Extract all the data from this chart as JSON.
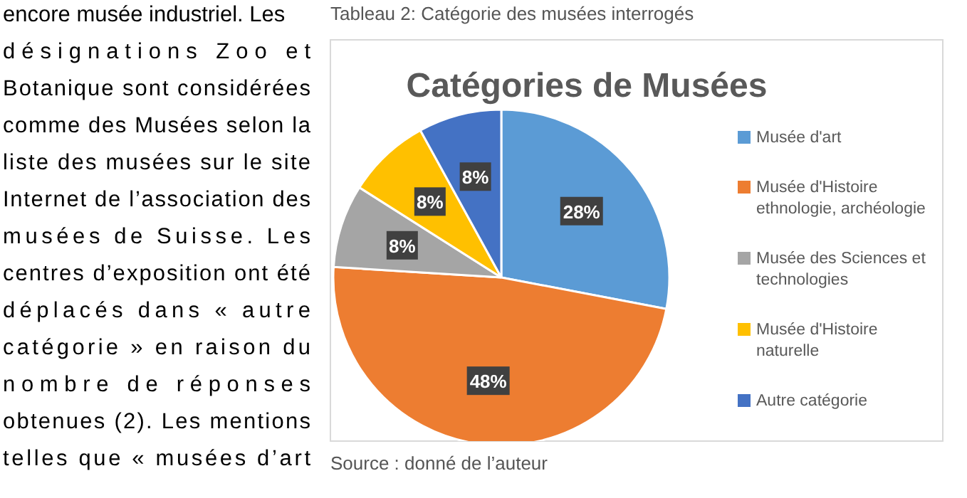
{
  "chart_data": {
    "type": "pie",
    "title": "Catégories de Musées",
    "categories": [
      "Musée d'art",
      "Musée d'Histoire ethnologie, archéologie",
      "Musée des Sciences et technologies",
      "Musée d'Histoire naturelle",
      "Autre catégorie"
    ],
    "values": [
      28,
      48,
      8,
      8,
      8
    ],
    "colors": [
      "#5b9bd5",
      "#ed7d31",
      "#a5a5a5",
      "#ffc000",
      "#4472c4"
    ],
    "value_labels": [
      "28%",
      "48%",
      "8%",
      "8%",
      "8%"
    ],
    "legend": "right",
    "annotations": [
      "Tableau 2: Catégorie des musées interrogés",
      "Source : donné de l’auteur",
      "encore musée industriel. Les\ndésignations Zoo et\nBotanique sont considérées\ncomme des Musées selon la\nliste des musées sur le site\nInternet de l’association des\nmusées de Suisse. Les\ncentres d’exposition ont été\ndéplacés dans « autre\ncatégorie » en raison du\nnombre de réponses\nobtenues (2). Les mentions\ntelles que « musées d’art"
    ]
  }
}
